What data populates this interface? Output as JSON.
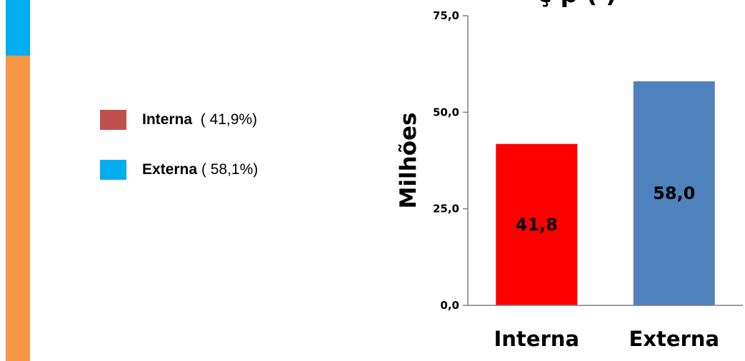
{
  "legend": {
    "items": [
      {
        "name": "Interna",
        "pct": "( 41,9%)",
        "color": "#c0504d"
      },
      {
        "name": "Externa",
        "pct": "( 58,1%)",
        "color": "#00aeef"
      }
    ]
  },
  "chart_data": {
    "type": "bar",
    "categories": [
      "Interna",
      "Externa"
    ],
    "values": [
      41.8,
      58.0
    ],
    "value_labels": [
      "41,8",
      "58,0"
    ],
    "bar_colors": [
      "#ff0000",
      "#4f81bd"
    ],
    "ylabel": "Milhões",
    "ylim": [
      0,
      75
    ],
    "yticks": [
      0,
      25,
      50,
      75
    ],
    "ytick_labels": [
      "0,0",
      "25,0",
      "50,0",
      "75,0"
    ],
    "title_fragment": "ç p ( )",
    "grid": false
  },
  "colors": {
    "stripe_top": "#00aeef",
    "stripe_bottom": "#f79646",
    "axis": "#7f7f7f"
  }
}
